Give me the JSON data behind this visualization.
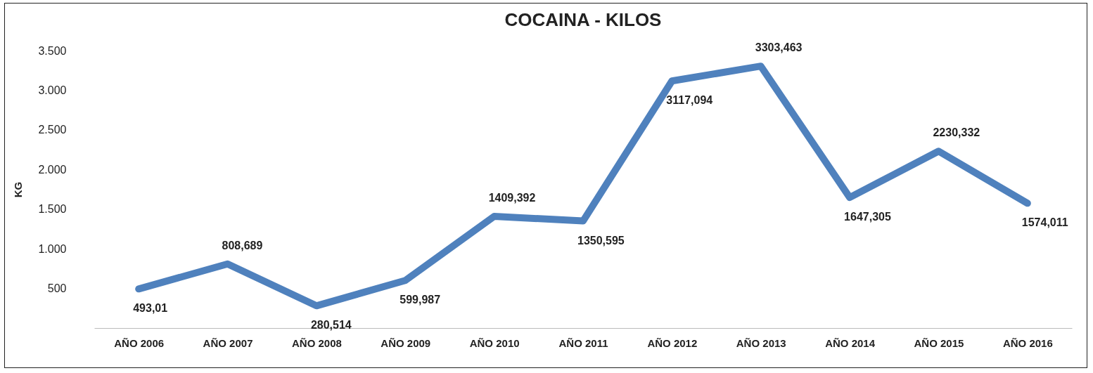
{
  "chart_data": {
    "type": "line",
    "title": "COCAINA - KILOS",
    "ylabel": "KG",
    "categories": [
      "AÑO 2006",
      "AÑO 2007",
      "AÑO 2008",
      "AÑO 2009",
      "AÑO 2010",
      "AÑO 2011",
      "AÑO 2012",
      "AÑO 2013",
      "AÑO 2014",
      "AÑO 2015",
      "AÑO 2016"
    ],
    "series": [
      {
        "color": "#4f81bd",
        "values": [
          493.01,
          808.689,
          280.514,
          599.987,
          1409.392,
          1350.595,
          3117.094,
          3303.463,
          1647.305,
          2230.332,
          1574.011
        ],
        "value_labels": [
          "493,01",
          "808,689",
          "280,514",
          "599,987",
          "1409,392",
          "1350,595",
          "3117,094",
          "3303,463",
          "1647,305",
          "2230,332",
          "1574,011"
        ]
      }
    ],
    "ylim": [
      0,
      3500
    ],
    "yticks": [
      {
        "value": 500,
        "label": "500"
      },
      {
        "value": 1000,
        "label": "1.000"
      },
      {
        "value": 1500,
        "label": "1.500"
      },
      {
        "value": 2000,
        "label": "2.000"
      },
      {
        "value": 2500,
        "label": "2.500"
      },
      {
        "value": 3000,
        "label": "3.000"
      },
      {
        "value": 3500,
        "label": "3.500"
      }
    ],
    "grid": false,
    "marker": "none",
    "line_style": "solid"
  }
}
